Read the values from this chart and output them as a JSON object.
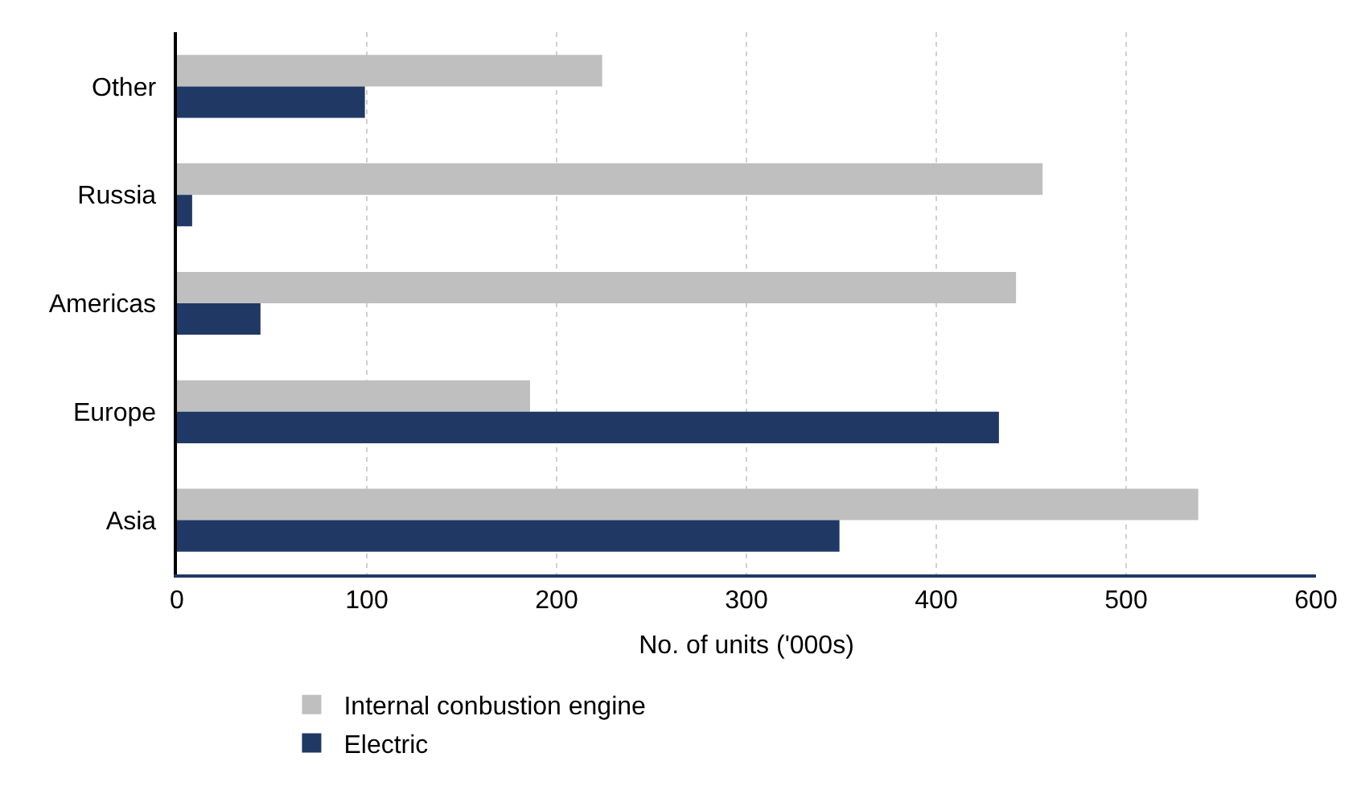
{
  "chart_data": {
    "type": "bar",
    "orientation": "horizontal",
    "xlabel": "No. of units ('000s)",
    "categories": [
      "Other",
      "Russia",
      "Americas",
      "Europe",
      "Asia"
    ],
    "series": [
      {
        "name": "Internal conbustion engine",
        "color": "#bfbfbf",
        "values": [
          224,
          456,
          442,
          186,
          538
        ]
      },
      {
        "name": "Electric",
        "color": "#203864",
        "values": [
          99,
          8,
          44,
          433,
          349
        ]
      }
    ],
    "xlim": [
      0,
      600
    ],
    "xticks": [
      0,
      100,
      200,
      300,
      400,
      500,
      600
    ],
    "grid": "x",
    "legend": "bottom"
  }
}
